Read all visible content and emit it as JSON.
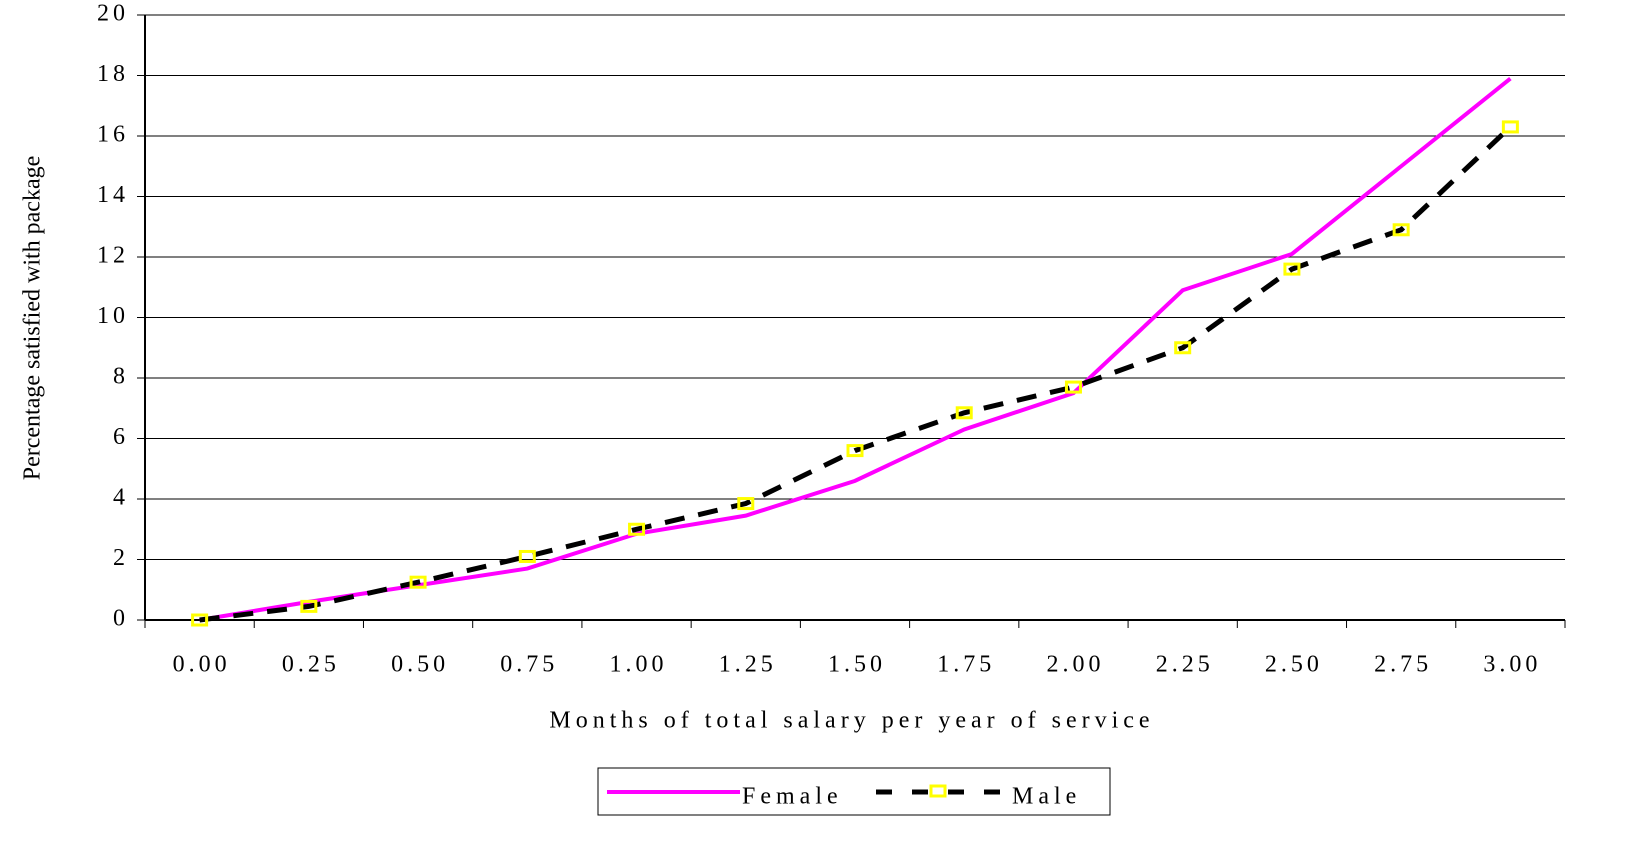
{
  "chart_data": {
    "type": "line",
    "x_label": "Months of total salary per year of service",
    "y_label": "Percentage satisfied with package",
    "categories": [
      "0.00",
      "0.25",
      "0.50",
      "0.75",
      "1.00",
      "1.25",
      "1.50",
      "1.75",
      "2.00",
      "2.25",
      "2.50",
      "2.75",
      "3.00"
    ],
    "series": [
      {
        "name": "Female",
        "color": "#ff00ff",
        "values": [
          0,
          0.6,
          1.15,
          1.7,
          2.85,
          3.45,
          4.6,
          6.3,
          7.5,
          10.9,
          12.1,
          15,
          17.9
        ]
      },
      {
        "name": "Male",
        "color": "#000000",
        "marker_color": "#ffff00",
        "values": [
          0,
          0.45,
          1.25,
          2.1,
          3.0,
          3.85,
          5.6,
          6.85,
          7.7,
          9.0,
          11.6,
          12.9,
          16.3
        ]
      }
    ],
    "ylim": [
      0,
      20
    ],
    "yticks": [
      0,
      2,
      4,
      6,
      8,
      10,
      12,
      14,
      16,
      18,
      20
    ],
    "grid": true,
    "legend": "bottom"
  }
}
